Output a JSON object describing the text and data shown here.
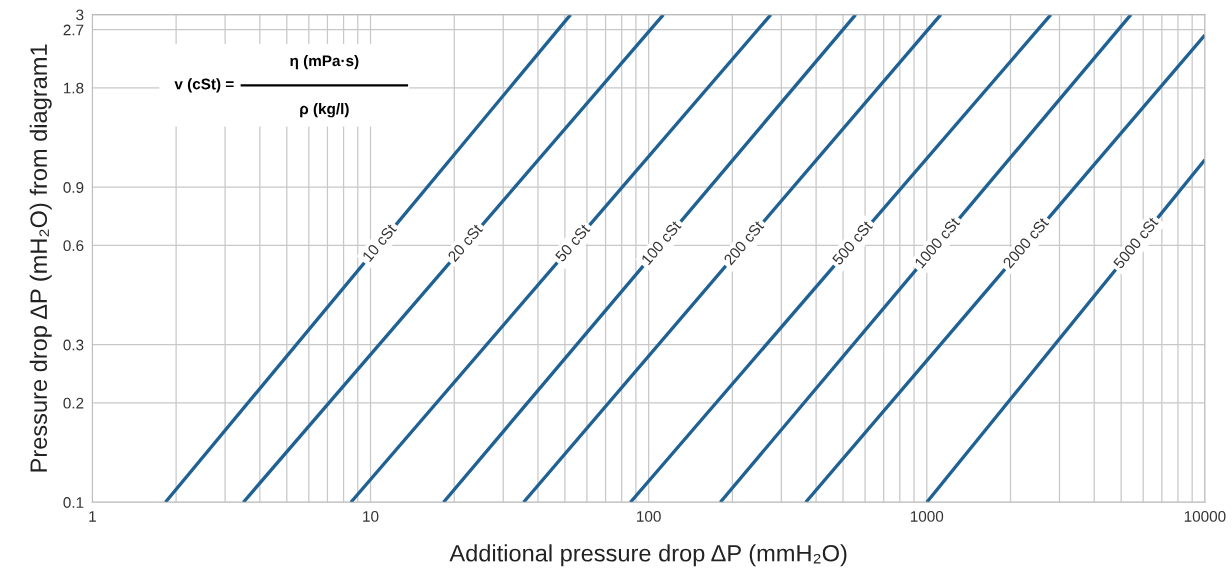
{
  "chart_data": {
    "type": "line",
    "xlabel": "Additional pressure drop ΔP (mmH₂O)",
    "ylabel": "Pressure drop ΔP (mH₂O) from diagram1",
    "log": "xy",
    "grid": true,
    "marker": "none",
    "line_style": "solid",
    "xlim": [
      1,
      10000
    ],
    "ylim": [
      0.1,
      3
    ],
    "xticks": [
      1,
      {
        "value": 2,
        "label": null
      },
      {
        "value": 3,
        "label": null
      },
      {
        "value": 4,
        "label": null
      },
      {
        "value": 5,
        "label": null
      },
      {
        "value": 6,
        "label": null
      },
      {
        "value": 7,
        "label": null
      },
      {
        "value": 8,
        "label": null
      },
      {
        "value": 9,
        "label": null
      },
      10,
      {
        "value": 20,
        "label": null
      },
      {
        "value": 30,
        "label": null
      },
      {
        "value": 40,
        "label": null
      },
      {
        "value": 50,
        "label": null
      },
      {
        "value": 60,
        "label": null
      },
      {
        "value": 70,
        "label": null
      },
      {
        "value": 80,
        "label": null
      },
      {
        "value": 90,
        "label": null
      },
      100,
      {
        "value": 200,
        "label": null
      },
      {
        "value": 300,
        "label": null
      },
      {
        "value": 400,
        "label": null
      },
      {
        "value": 500,
        "label": null
      },
      {
        "value": 600,
        "label": null
      },
      {
        "value": 700,
        "label": null
      },
      {
        "value": 800,
        "label": null
      },
      {
        "value": 900,
        "label": null
      },
      1000,
      {
        "value": 2000,
        "label": null
      },
      {
        "value": 3000,
        "label": null
      },
      {
        "value": 4000,
        "label": null
      },
      {
        "value": 5000,
        "label": null
      },
      {
        "value": 6000,
        "label": null
      },
      {
        "value": 7000,
        "label": null
      },
      {
        "value": 8000,
        "label": null
      },
      {
        "value": 9000,
        "label": null
      },
      10000
    ],
    "yticks": [
      0.1,
      0.2,
      0.3,
      0.6,
      0.9,
      1.8,
      2.7,
      3
    ],
    "series": [
      {
        "name": "10 cSt",
        "color": "#1f6193",
        "x": [
          1.83,
          52.4
        ],
        "values": [
          0.1,
          3
        ]
      },
      {
        "name": "20 cSt",
        "color": "#1f6193",
        "x": [
          3.49,
          113
        ],
        "values": [
          0.1,
          3
        ]
      },
      {
        "name": "50 cSt",
        "color": "#1f6193",
        "x": [
          8.5,
          275
        ],
        "values": [
          0.1,
          3
        ]
      },
      {
        "name": "100 cSt",
        "color": "#1f6193",
        "x": [
          18.3,
          555
        ],
        "values": [
          0.1,
          3
        ]
      },
      {
        "name": "200 cSt",
        "color": "#1f6193",
        "x": [
          35.5,
          1123
        ],
        "values": [
          0.1,
          3
        ]
      },
      {
        "name": "500 cSt",
        "color": "#1f6193",
        "x": [
          86,
          2793
        ],
        "values": [
          0.1,
          3
        ]
      },
      {
        "name": "1000 cSt",
        "color": "#1f6193",
        "x": [
          181,
          5420
        ],
        "values": [
          0.1,
          3
        ]
      },
      {
        "name": "2000 cSt",
        "color": "#1f6193",
        "x": [
          367,
          10000
        ],
        "values": [
          0.1,
          2.6
        ]
      },
      {
        "name": "5000 cSt",
        "color": "#1f6193",
        "x": [
          1000,
          10000
        ],
        "values": [
          0.1,
          1.09
        ]
      }
    ],
    "annotations": [
      "v (cSt) =",
      "η (mPa·s)",
      "ρ (kg/l)"
    ]
  }
}
